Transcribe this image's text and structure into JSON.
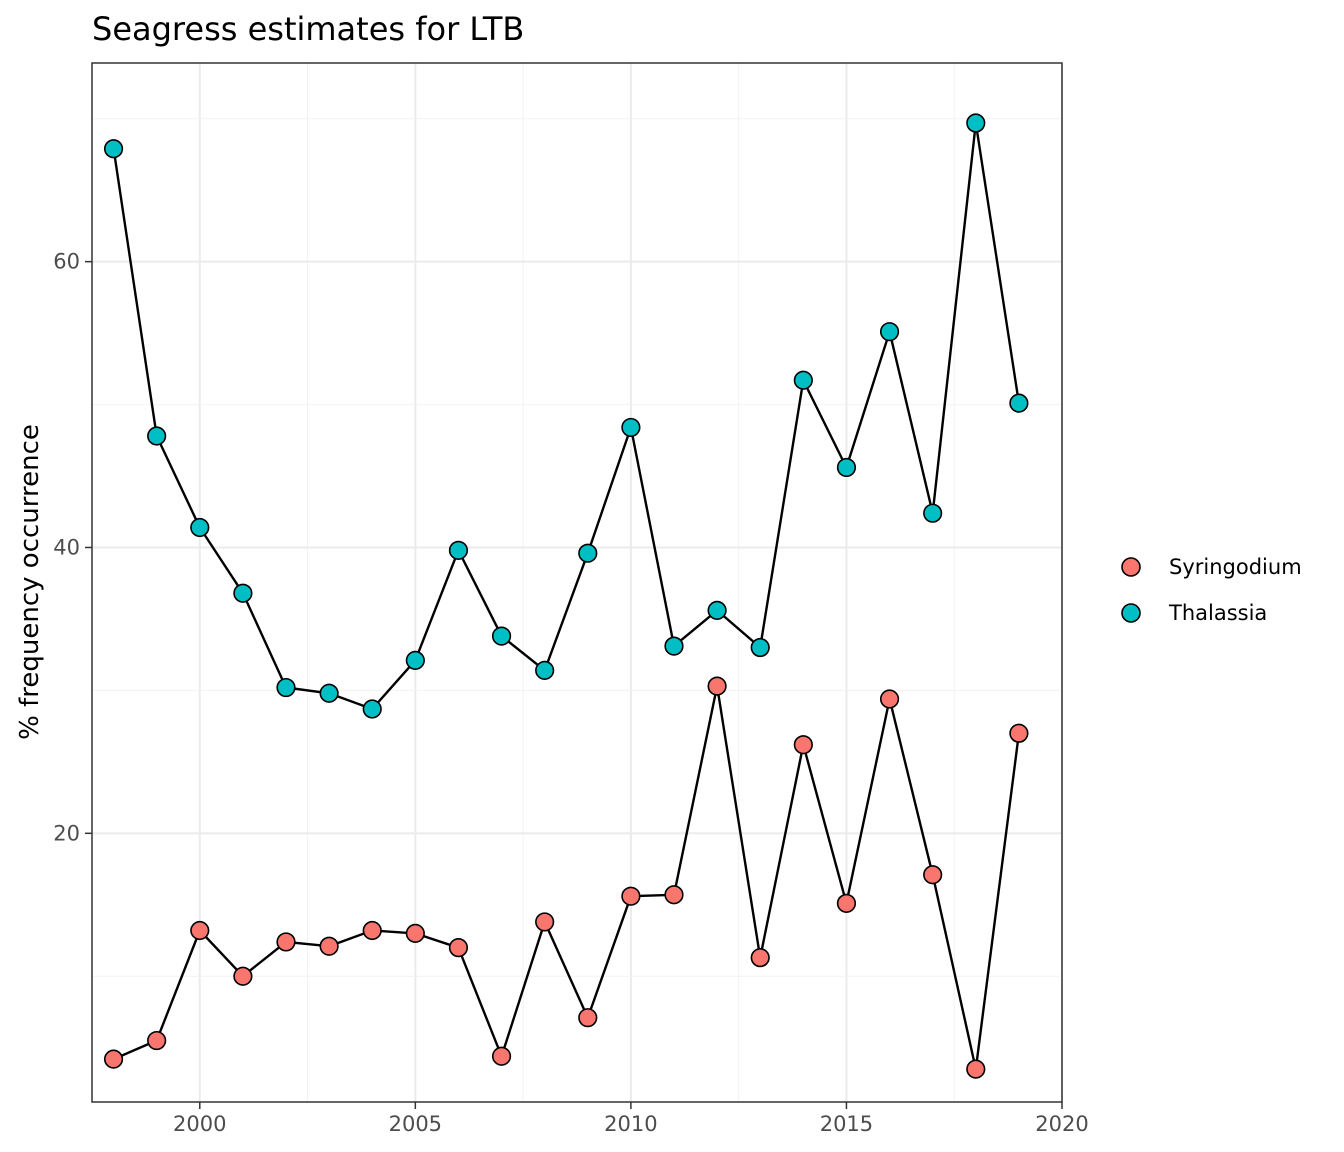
{
  "chart_data": {
    "type": "line",
    "title": "Seagress estimates for LTB",
    "xlabel": "",
    "ylabel": "% frequency occurrence",
    "xlim": [
      1997.5,
      2020.0
    ],
    "ylim": [
      1.2,
      73.9
    ],
    "x_ticks": [
      2000,
      2005,
      2010,
      2015,
      2020
    ],
    "y_ticks": [
      20,
      40,
      60
    ],
    "x": [
      1998,
      1999,
      2000,
      2001,
      2002,
      2003,
      2004,
      2005,
      2006,
      2007,
      2008,
      2009,
      2010,
      2011,
      2012,
      2013,
      2014,
      2015,
      2016,
      2017,
      2018,
      2019
    ],
    "series": [
      {
        "name": "Syringodium",
        "color": "#f8766d",
        "values": [
          4.2,
          5.5,
          13.2,
          10.0,
          12.4,
          12.1,
          13.2,
          13.0,
          12.0,
          4.4,
          13.8,
          7.1,
          15.6,
          15.7,
          30.3,
          11.3,
          26.2,
          15.1,
          29.4,
          17.1,
          3.5,
          27.0
        ]
      },
      {
        "name": "Thalassia",
        "color": "#00bfc4",
        "values": [
          67.9,
          47.8,
          41.4,
          36.8,
          30.2,
          29.8,
          28.7,
          32.1,
          39.8,
          33.8,
          31.4,
          39.6,
          48.4,
          33.1,
          35.6,
          33.0,
          51.7,
          45.6,
          55.1,
          42.4,
          69.7,
          50.1
        ]
      }
    ],
    "grid": true,
    "legend_position": "right",
    "line_color": "#000000"
  }
}
